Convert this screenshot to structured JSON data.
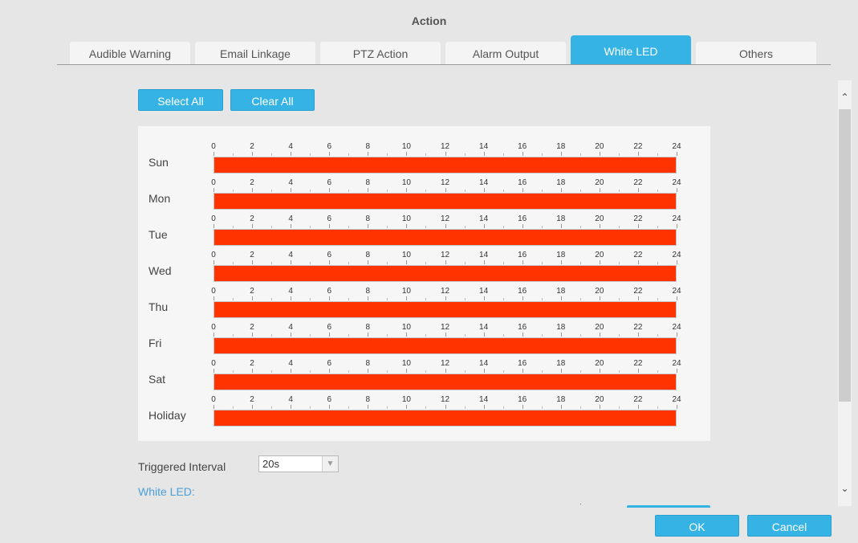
{
  "header": {
    "title": "Action"
  },
  "tabs": [
    {
      "label": "Audible Warning",
      "active": false
    },
    {
      "label": "Email Linkage",
      "active": false
    },
    {
      "label": "PTZ Action",
      "active": false
    },
    {
      "label": "Alarm Output",
      "active": false
    },
    {
      "label": "White LED",
      "active": true
    },
    {
      "label": "Others",
      "active": false
    }
  ],
  "toolbar": {
    "select_all": "Select All",
    "clear_all": "Clear All"
  },
  "schedule": {
    "hour_ticks": [
      "0",
      "2",
      "4",
      "6",
      "8",
      "10",
      "12",
      "14",
      "16",
      "18",
      "20",
      "22",
      "24"
    ],
    "days": [
      {
        "label": "Sun",
        "start_hour": 0,
        "end_hour": 24
      },
      {
        "label": "Mon",
        "start_hour": 0,
        "end_hour": 24
      },
      {
        "label": "Tue",
        "start_hour": 0,
        "end_hour": 24
      },
      {
        "label": "Wed",
        "start_hour": 0,
        "end_hour": 24
      },
      {
        "label": "Thu",
        "start_hour": 0,
        "end_hour": 24
      },
      {
        "label": "Fri",
        "start_hour": 0,
        "end_hour": 24
      },
      {
        "label": "Sat",
        "start_hour": 0,
        "end_hour": 24
      },
      {
        "label": "Holiday",
        "start_hour": 0,
        "end_hour": 24
      }
    ],
    "active_color": "#ff3300"
  },
  "triggered_interval": {
    "label": "Triggered Interval",
    "value": "20s"
  },
  "white_led": {
    "label": "White LED:"
  },
  "footer": {
    "ok": "OK",
    "cancel": "Cancel"
  },
  "colors": {
    "accent": "#35b3e5",
    "background": "#e6e6e6",
    "link": "#4a9fd8"
  },
  "icons": {
    "dropdown": "chevron-down-icon",
    "scroll_up": "chevron-up-icon",
    "scroll_down": "chevron-down-icon"
  }
}
